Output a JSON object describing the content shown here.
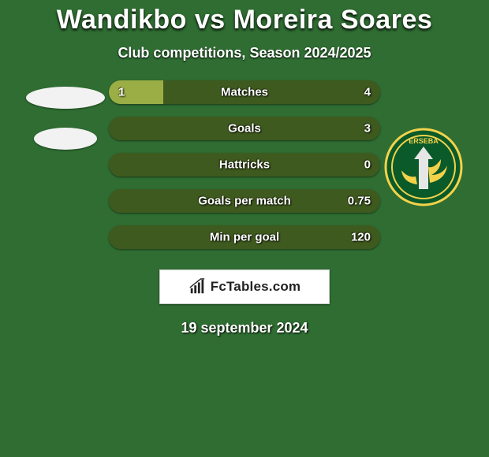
{
  "background_color": "#2f6d32",
  "title": "Wandikbo vs Moreira Soares",
  "subtitle": "Club competitions, Season 2024/2025",
  "date": "19 september 2024",
  "logo_text": "FcTables.com",
  "left_placeholder_color": "#f2f2f2",
  "club_badge": {
    "bg": "#0a5a2a",
    "ring": "#f3d24a",
    "detail": "#e6e6e6"
  },
  "bars": {
    "track_left_color": "#9aae45",
    "track_right_color": "#3f5a1e",
    "label_color": "#ffffff",
    "items": [
      {
        "label": "Matches",
        "left": "1",
        "right": "4",
        "left_pct": 20
      },
      {
        "label": "Goals",
        "left": "",
        "right": "3",
        "left_pct": 0
      },
      {
        "label": "Hattricks",
        "left": "",
        "right": "0",
        "left_pct": 0
      },
      {
        "label": "Goals per match",
        "left": "",
        "right": "0.75",
        "left_pct": 0
      },
      {
        "label": "Min per goal",
        "left": "",
        "right": "120",
        "left_pct": 0
      }
    ]
  }
}
